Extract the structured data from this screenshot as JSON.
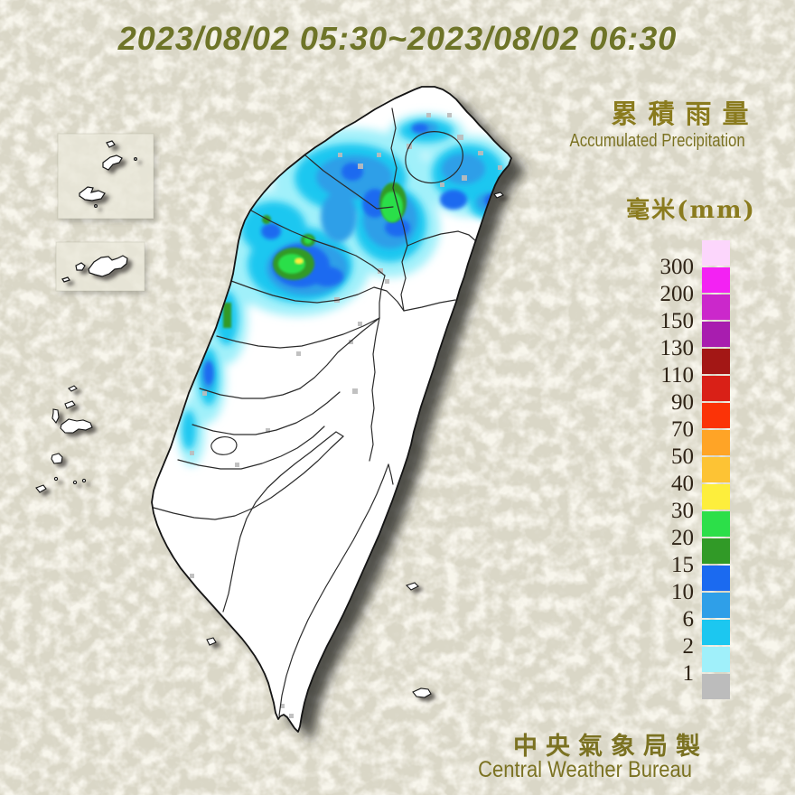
{
  "title": "2023/08/02 05:30~2023/08/02 06:30",
  "right_panel": {
    "heading_zh": "累積雨量",
    "heading_en": "Accumulated Precipitation",
    "unit_label": "毫米(mm)"
  },
  "legend": {
    "labels": [
      "300",
      "200",
      "150",
      "130",
      "110",
      "90",
      "70",
      "50",
      "40",
      "30",
      "20",
      "15",
      "10",
      "6",
      "2",
      "1"
    ],
    "colors": [
      "#fcd6fc",
      "#f322f3",
      "#cb28cb",
      "#a81daf",
      "#a31715",
      "#d92017",
      "#fb3307",
      "#ffa426",
      "#fdc334",
      "#fdee3c",
      "#2cdf49",
      "#319a27",
      "#1b6af0",
      "#2f9fe8",
      "#1cc7f0",
      "#a0f0fa",
      "#bcbcbc"
    ]
  },
  "credits": {
    "line_zh": "中央氣象局製",
    "line_en": "Central Weather Bureau"
  },
  "colors": {
    "title_text": "#6e7428",
    "heading_text": "#8a7b1e",
    "subheading_text": "#7b7222",
    "legend_label_text": "#2f2417",
    "background_base": "#dad7c7",
    "land_fill": "#ffffff",
    "coast_stroke": "#141414"
  }
}
